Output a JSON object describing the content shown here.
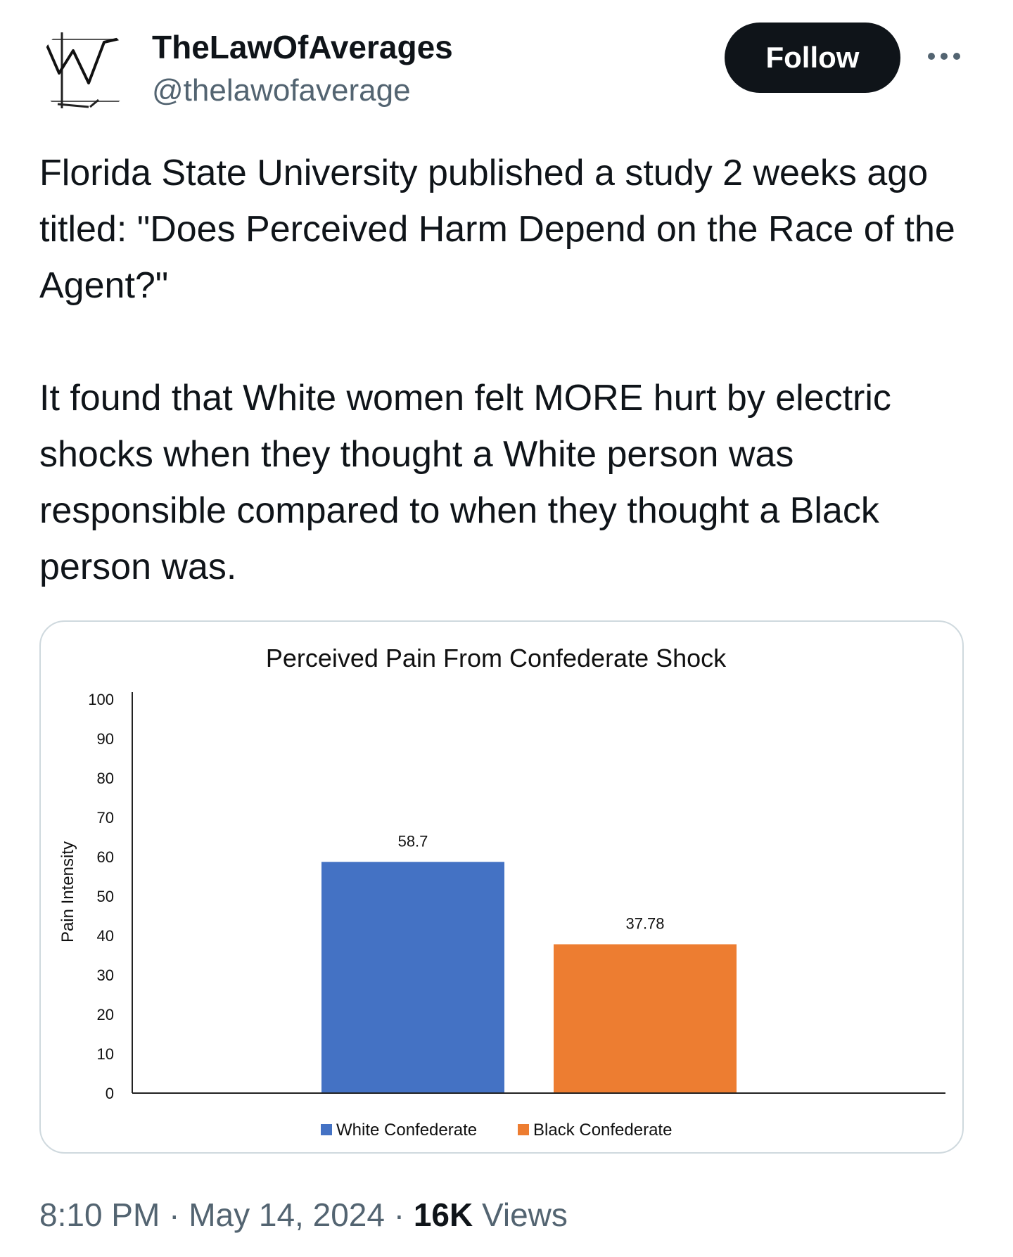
{
  "author": {
    "display_name": "TheLawOfAverages",
    "handle": "@thelawofaverage",
    "avatar_icon": "line-chart-sketch-icon"
  },
  "actions": {
    "follow_label": "Follow",
    "more_icon": "more-horizontal-icon"
  },
  "tweet": {
    "paragraphs": [
      "Florida State University published a study 2 weeks ago titled: \"Does Perceived Harm Depend on the Race of the Agent?\"",
      "It found that White women felt MORE hurt by electric shocks when they thought a White person was responsible compared to when they thought a Black person was."
    ]
  },
  "chart_data": {
    "type": "bar",
    "title": "Perceived Pain From Confederate Shock",
    "xlabel": "",
    "ylabel": "Pain Intensity",
    "ylim": [
      0,
      100
    ],
    "yticks": [
      0,
      10,
      20,
      30,
      40,
      50,
      60,
      70,
      80,
      90,
      100
    ],
    "categories": [
      "White Confederate",
      "Black Confederate"
    ],
    "values": [
      58.7,
      37.78
    ],
    "data_labels": [
      "58.7",
      "37.78"
    ],
    "colors": [
      "#4472c4",
      "#ed7d31"
    ],
    "grid": false,
    "legend": "bottom",
    "legend_entries": [
      "White Confederate",
      "Black Confederate"
    ]
  },
  "meta": {
    "time": "8:10 PM",
    "separator": "·",
    "date": "May 14, 2024",
    "views_count": "16K",
    "views_label": "Views"
  }
}
